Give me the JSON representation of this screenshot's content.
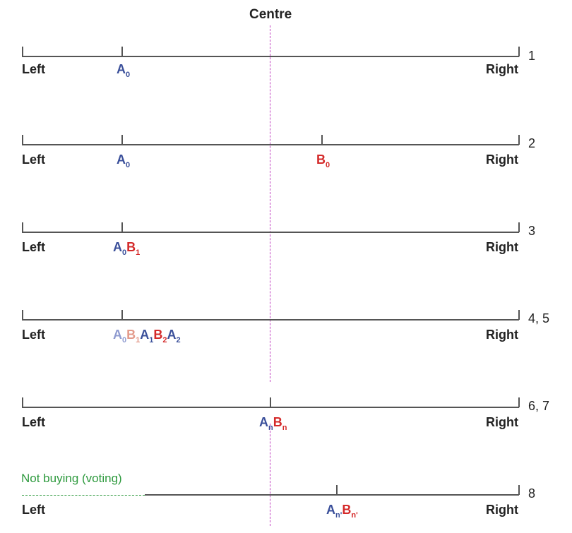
{
  "centre_label": "Centre",
  "left_label": "Left",
  "right_label": "Right",
  "rows": [
    {
      "number": "1"
    },
    {
      "number": "2"
    },
    {
      "number": "3"
    },
    {
      "number": "4, 5"
    },
    {
      "number": "6, 7"
    },
    {
      "number": "8"
    }
  ],
  "labels": {
    "A": "A",
    "B": "B",
    "sub_0": "0",
    "sub_1": "1",
    "sub_2": "2",
    "sub_n": "n",
    "sub_n_prime": "n'"
  },
  "not_buying_label": "Not buying (voting)",
  "colors": {
    "firm_a": "#3a4f9a",
    "firm_b": "#d42a2a",
    "firm_a_faded": "#8f9bd0",
    "firm_b_faded": "#e39a8a",
    "centre_line": "#c040c0",
    "not_buying": "#2e9a3e",
    "axis": "#555555"
  }
}
